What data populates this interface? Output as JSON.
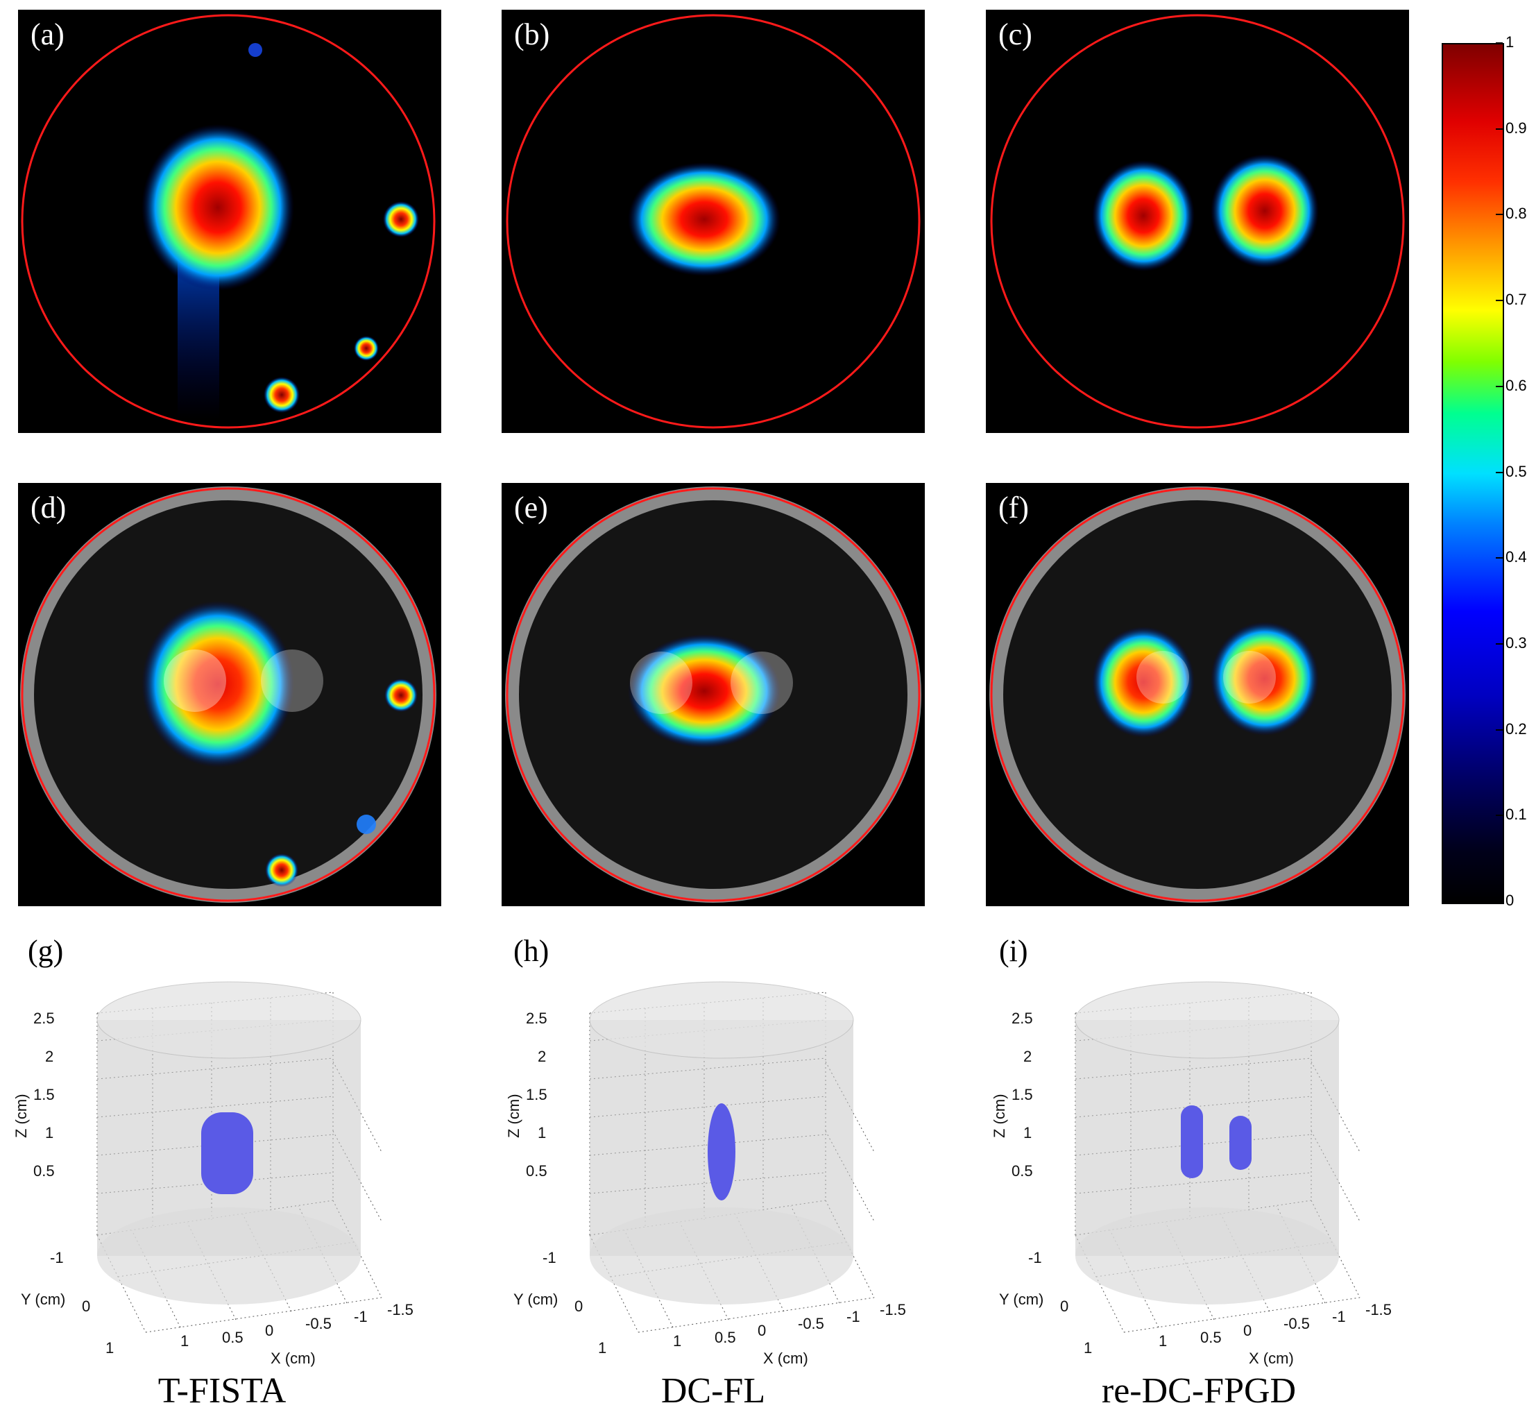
{
  "panels": [
    {
      "label": "(a)"
    },
    {
      "label": "(b)"
    },
    {
      "label": "(c)"
    },
    {
      "label": "(d)"
    },
    {
      "label": "(e)"
    },
    {
      "label": "(f)"
    }
  ],
  "plots3d": [
    {
      "label": "(g)",
      "method": "T-FISTA"
    },
    {
      "label": "(h)",
      "method": "DC-FL"
    },
    {
      "label": "(i)",
      "method": "re-DC-FPGD"
    }
  ],
  "axes3d": {
    "z_label": "Z (cm)",
    "y_label": "Y (cm)",
    "x_label": "X (cm)",
    "z_ticks": [
      "2.5",
      "2",
      "1.5",
      "1",
      "0.5"
    ],
    "y_ticks": [
      "-1",
      "0",
      "1"
    ],
    "x_ticks": [
      "1",
      "0.5",
      "0",
      "-0.5",
      "-1",
      "-1.5"
    ]
  },
  "colorbar": {
    "ticks": [
      "1",
      "0.9",
      "0.8",
      "0.7",
      "0.6",
      "0.5",
      "0.4",
      "0.3",
      "0.2",
      "0.1",
      "0"
    ],
    "min": 0,
    "max": 1
  },
  "colors": {
    "boundary": "#ff1a1a",
    "isosurface": "#5a5ae6"
  }
}
